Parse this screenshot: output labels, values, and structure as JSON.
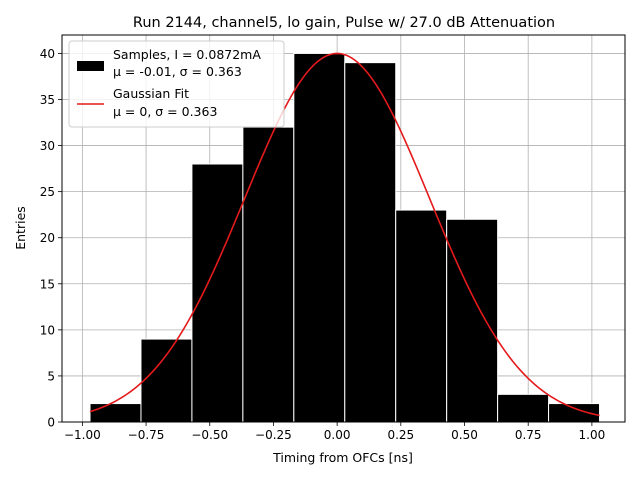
{
  "chart_data": {
    "type": "bar",
    "title": "Run 2144, channel5, lo gain, Pulse w/ 27.0 dB Attenuation",
    "xlabel": "Timing from OFCs [ns]",
    "ylabel": "Entries",
    "xlim": [
      -1.08,
      1.13
    ],
    "ylim": [
      0,
      42
    ],
    "grid": true,
    "legend_position": "top-left",
    "x_ticks": [
      "-1.00",
      "-0.75",
      "-0.50",
      "-0.25",
      "0.00",
      "0.25",
      "0.50",
      "0.75",
      "1.00"
    ],
    "x_tick_values": [
      -1.0,
      -0.75,
      -0.5,
      -0.25,
      0.0,
      0.25,
      0.5,
      0.75,
      1.0
    ],
    "y_ticks": [
      "0",
      "5",
      "10",
      "15",
      "20",
      "25",
      "30",
      "35",
      "40"
    ],
    "y_tick_values": [
      0,
      5,
      10,
      15,
      20,
      25,
      30,
      35,
      40
    ],
    "bin_edges": [
      -0.97,
      -0.77,
      -0.57,
      -0.37,
      -0.17,
      0.03,
      0.23,
      0.43,
      0.63,
      0.83,
      1.03
    ],
    "counts": [
      2,
      9,
      28,
      32,
      40,
      39,
      23,
      22,
      3,
      2
    ],
    "bar_color": "#000000",
    "bar_edge_color": "#ffffff",
    "series": [
      {
        "label_lines": [
          "Samples, I = 0.0872mA",
          "$\\mu$ = -0.01, $\\sigma$ = 0.363"
        ],
        "label_display": [
          "Samples, I = 0.0872mA",
          "μ = -0.01, σ = 0.363"
        ]
      },
      {
        "label_lines": [
          "Gaussian Fit",
          "$\\mu$ = 0, $\\sigma$ = 0.363"
        ],
        "label_display": [
          "Gaussian Fit",
          "μ = 0, σ = 0.363"
        ]
      }
    ],
    "fit": {
      "amplitude": 40,
      "mu": 0,
      "sigma": 0.363,
      "x_range": [
        -0.97,
        1.03
      ],
      "color": "#e41a1c"
    }
  }
}
